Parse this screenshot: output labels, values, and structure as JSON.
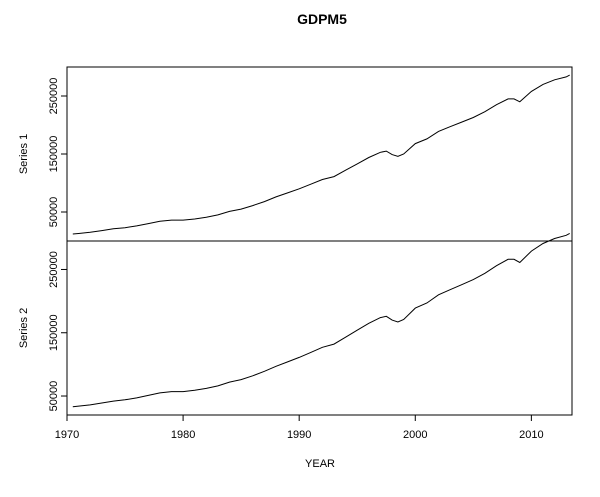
{
  "chart_data": {
    "type": "line",
    "title": "GDPM5",
    "xlabel": "YEAR",
    "xlim": [
      1970,
      2013.5
    ],
    "x_ticks": [
      "1970",
      "1980",
      "1990",
      "2000",
      "2010"
    ],
    "y_ticks": [
      "50000",
      "150000",
      "250000"
    ],
    "grid": false,
    "legend": "none",
    "panels": [
      {
        "ylabel": "Series 1",
        "ylim": [
          0,
          300000
        ],
        "x": [
          1970.5,
          1971,
          1972,
          1973,
          1974,
          1975,
          1976,
          1977,
          1978,
          1979,
          1980,
          1981,
          1982,
          1983,
          1984,
          1985,
          1986,
          1987,
          1988,
          1989,
          1990,
          1991,
          1992,
          1993,
          1994,
          1995,
          1996,
          1997,
          1997.5,
          1998,
          1998.5,
          1999,
          2000,
          2001,
          2002,
          2003,
          2004,
          2005,
          2006,
          2007,
          2008,
          2008.5,
          2009,
          2010,
          2011,
          2012,
          2013,
          2013.3
        ],
        "values": [
          12000,
          13000,
          15000,
          18000,
          21000,
          23000,
          26000,
          30000,
          34000,
          36000,
          36000,
          38000,
          41000,
          45000,
          51000,
          55000,
          61000,
          68000,
          76000,
          83000,
          90000,
          98000,
          106000,
          111000,
          122000,
          133000,
          144000,
          153000,
          155000,
          149000,
          146000,
          150000,
          168000,
          176000,
          189000,
          197000,
          205000,
          213000,
          223000,
          235000,
          245000,
          245000,
          240000,
          258000,
          270000,
          278000,
          283000,
          286000
        ]
      },
      {
        "ylabel": "Series 2",
        "ylim": [
          20000,
          295000
        ],
        "x": [
          1970.5,
          1971,
          1972,
          1973,
          1974,
          1975,
          1976,
          1977,
          1978,
          1979,
          1980,
          1981,
          1982,
          1983,
          1984,
          1985,
          1986,
          1987,
          1988,
          1989,
          1990,
          1991,
          1992,
          1993,
          1994,
          1995,
          1996,
          1997,
          1997.5,
          1998,
          1998.5,
          1999,
          2000,
          2001,
          2002,
          2003,
          2004,
          2005,
          2006,
          2007,
          2008,
          2008.5,
          2009,
          2010,
          2011,
          2012,
          2013,
          2013.3
        ],
        "values": [
          33000,
          34000,
          36000,
          39000,
          42000,
          44000,
          47000,
          51000,
          55000,
          57000,
          57000,
          59000,
          62000,
          66000,
          72000,
          76000,
          82000,
          89000,
          97000,
          104000,
          111000,
          119000,
          127000,
          132000,
          143000,
          154000,
          165000,
          174000,
          176000,
          170000,
          167000,
          171000,
          189000,
          197000,
          210000,
          218000,
          226000,
          234000,
          244000,
          256000,
          266000,
          266000,
          261000,
          279000,
          291000,
          299000,
          304000,
          307000
        ]
      }
    ]
  }
}
